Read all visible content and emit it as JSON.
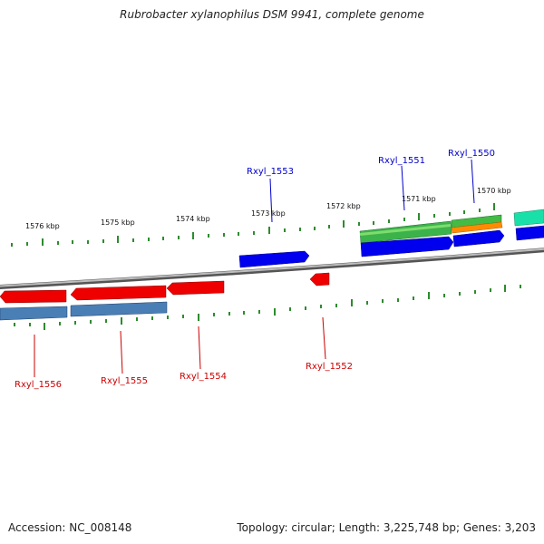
{
  "title": "Rubrobacter xylanophilus DSM 9941, complete genome",
  "footer": {
    "accession": "Accession: NC_008148",
    "topology": "Topology: circular; Length: 3,225,748 bp; Genes: 3,203"
  },
  "colors": {
    "backbone": "#8a8a8a",
    "ticks": "#2e8b2e",
    "plus_label": "#0000cc",
    "minus_label": "#cc0000"
  },
  "kbp_labels": [
    "1576 kbp",
    "1575 kbp",
    "1574 kbp",
    "1573 kbp",
    "1572 kbp",
    "1571 kbp",
    "1570 kbp"
  ],
  "gene_labels": [
    {
      "name": "Rxyl_1553",
      "strand": "plus"
    },
    {
      "name": "Rxyl_1551",
      "strand": "plus"
    },
    {
      "name": "Rxyl_1550",
      "strand": "plus"
    },
    {
      "name": "Rxyl_1556",
      "strand": "minus"
    },
    {
      "name": "Rxyl_1555",
      "strand": "minus"
    },
    {
      "name": "Rxyl_1554",
      "strand": "minus"
    },
    {
      "name": "Rxyl_1552",
      "strand": "minus"
    }
  ]
}
